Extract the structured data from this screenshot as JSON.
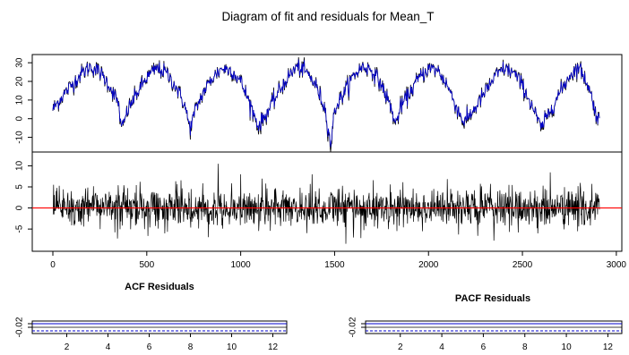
{
  "title": "Diagram of fit and residuals for Mean_T",
  "colors": {
    "observed": "#000000",
    "fitted": "#0000cc",
    "zero_line": "#ff0000",
    "conf_band": "#0000cc"
  },
  "chart_data": [
    {
      "type": "line",
      "panel": "fit",
      "title": "",
      "x_range": [
        0,
        2910
      ],
      "ylim": [
        -15,
        32
      ],
      "yticks": [
        -10,
        0,
        10,
        20,
        30
      ],
      "ytick_labels": [
        "-10",
        "0",
        "10",
        "20",
        "30"
      ],
      "series": [
        {
          "role": "observed",
          "color": "#000000",
          "description_free": true,
          "x": [
            0,
            50,
            100,
            150,
            200,
            250,
            300,
            350,
            365,
            400,
            450,
            500,
            550,
            600,
            650,
            700,
            730,
            760,
            800,
            850,
            900,
            950,
            1000,
            1050,
            1095,
            1150,
            1200,
            1250,
            1300,
            1350,
            1400,
            1450,
            1480,
            1500,
            1550,
            1600,
            1650,
            1700,
            1750,
            1800,
            1825,
            1850,
            1900,
            1950,
            2000,
            2050,
            2100,
            2150,
            2190,
            2250,
            2300,
            2350,
            2400,
            2450,
            2500,
            2555,
            2600,
            2650,
            2700,
            2750,
            2800,
            2850,
            2900
          ],
          "y": [
            5,
            12,
            18,
            24,
            28,
            25,
            18,
            8,
            -7,
            5,
            14,
            22,
            27,
            25,
            18,
            8,
            -6,
            5,
            14,
            22,
            27,
            26,
            20,
            8,
            -5,
            5,
            14,
            22,
            28,
            25,
            18,
            5,
            -16,
            5,
            14,
            23,
            28,
            26,
            18,
            6,
            -4,
            6,
            14,
            22,
            27,
            26,
            18,
            6,
            -3,
            6,
            14,
            22,
            27,
            25,
            18,
            6,
            -6,
            5,
            14,
            23,
            28,
            18,
            0
          ]
        },
        {
          "role": "fitted",
          "color": "#0000cc",
          "x": [
            0,
            50,
            100,
            150,
            200,
            250,
            300,
            350,
            365,
            400,
            450,
            500,
            550,
            600,
            650,
            700,
            730,
            760,
            800,
            850,
            900,
            950,
            1000,
            1050,
            1095,
            1150,
            1200,
            1250,
            1300,
            1350,
            1400,
            1450,
            1480,
            1500,
            1550,
            1600,
            1650,
            1700,
            1750,
            1800,
            1825,
            1850,
            1900,
            1950,
            2000,
            2050,
            2100,
            2150,
            2190,
            2250,
            2300,
            2350,
            2400,
            2450,
            2500,
            2555,
            2600,
            2650,
            2700,
            2750,
            2800,
            2850,
            2900
          ],
          "y": [
            5,
            12,
            18,
            24,
            28,
            25,
            18,
            8,
            -6,
            5,
            14,
            22,
            27,
            25,
            18,
            8,
            -5,
            5,
            14,
            22,
            27,
            26,
            20,
            8,
            -4,
            5,
            14,
            22,
            28,
            25,
            18,
            5,
            -14,
            5,
            14,
            23,
            28,
            26,
            18,
            6,
            -3,
            6,
            14,
            22,
            27,
            26,
            18,
            6,
            -2,
            6,
            14,
            22,
            27,
            25,
            18,
            6,
            -5,
            5,
            14,
            23,
            28,
            18,
            0
          ]
        }
      ]
    },
    {
      "type": "line",
      "panel": "residuals",
      "title": "",
      "x_range": [
        0,
        2910
      ],
      "xticks": [
        0,
        500,
        1000,
        1500,
        2000,
        2500,
        3000
      ],
      "xtick_labels": [
        "0",
        "500",
        "1000",
        "1500",
        "2000",
        "2500",
        "3000"
      ],
      "ylim": [
        -9,
        12
      ],
      "yticks": [
        -5,
        0,
        5,
        10
      ],
      "ytick_labels": [
        "-5",
        "0",
        "5",
        "10"
      ],
      "zero_line": 0,
      "series": [
        {
          "role": "residuals",
          "color": "#000000",
          "extremes": {
            "x": [
              880,
              1000,
              1380,
              1560,
              1600
            ],
            "y": [
              10.5,
              8,
              8,
              -8.5,
              -7
            ]
          }
        }
      ]
    },
    {
      "type": "bar",
      "panel": "acf",
      "title": "ACF Residuals",
      "x_range": [
        0.5,
        12.5
      ],
      "xticks": [
        2,
        4,
        6,
        8,
        10,
        12
      ],
      "xtick_labels": [
        "2",
        "4",
        "6",
        "8",
        "10",
        "12"
      ],
      "ytick_labels": [
        "-0.02"
      ],
      "conf_band": [
        -0.02,
        0.02
      ]
    },
    {
      "type": "bar",
      "panel": "pacf",
      "title": "PACF Residuals",
      "x_range": [
        0.5,
        12.5
      ],
      "xticks": [
        2,
        4,
        6,
        8,
        10,
        12
      ],
      "xtick_labels": [
        "2",
        "4",
        "6",
        "8",
        "10",
        "12"
      ],
      "ytick_labels": [
        "-0.02"
      ],
      "conf_band": [
        -0.02,
        0.02
      ]
    }
  ]
}
